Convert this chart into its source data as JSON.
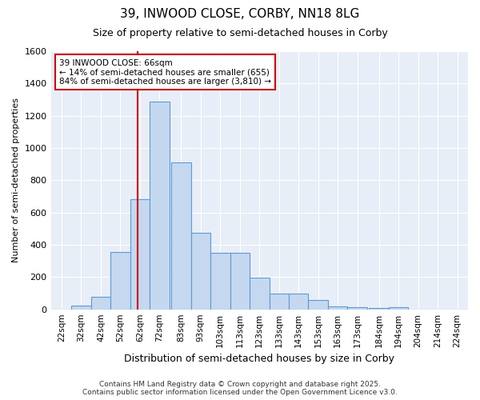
{
  "title": "39, INWOOD CLOSE, CORBY, NN18 8LG",
  "subtitle": "Size of property relative to semi-detached houses in Corby",
  "xlabel": "Distribution of semi-detached houses by size in Corby",
  "ylabel": "Number of semi-detached properties",
  "bar_labels": [
    "22sqm",
    "32sqm",
    "42sqm",
    "52sqm",
    "62sqm",
    "72sqm",
    "83sqm",
    "93sqm",
    "103sqm",
    "113sqm",
    "123sqm",
    "133sqm",
    "143sqm",
    "153sqm",
    "163sqm",
    "173sqm",
    "184sqm",
    "194sqm",
    "204sqm",
    "214sqm",
    "224sqm"
  ],
  "bar_values": [
    0,
    25,
    80,
    355,
    685,
    1290,
    910,
    475,
    350,
    350,
    195,
    100,
    100,
    60,
    20,
    15,
    10,
    15,
    0,
    0,
    0
  ],
  "bar_color": "#c5d8f0",
  "bar_edge_color": "#5b9bd5",
  "vline_color": "#cc0000",
  "annotation_text": "39 INWOOD CLOSE: 66sqm\n← 14% of semi-detached houses are smaller (655)\n84% of semi-detached houses are larger (3,810) →",
  "annotation_box_color": "white",
  "annotation_box_edge": "#cc0000",
  "ylim": [
    0,
    1600
  ],
  "yticks": [
    0,
    200,
    400,
    600,
    800,
    1000,
    1200,
    1400,
    1600
  ],
  "bg_color": "#e8eef7",
  "grid_color": "white",
  "footer_line1": "Contains HM Land Registry data © Crown copyright and database right 2025.",
  "footer_line2": "Contains public sector information licensed under the Open Government Licence v3.0.",
  "bin_starts": [
    22,
    32,
    42,
    52,
    62,
    72,
    83,
    93,
    103,
    113,
    123,
    133,
    143,
    153,
    163,
    173,
    184,
    194,
    204,
    214,
    224
  ],
  "bin_widths": [
    10,
    10,
    10,
    10,
    10,
    10,
    10,
    10,
    10,
    10,
    10,
    10,
    10,
    10,
    10,
    10,
    10,
    10,
    10,
    10,
    10
  ],
  "vline_x": 66,
  "property_sqm": 66
}
